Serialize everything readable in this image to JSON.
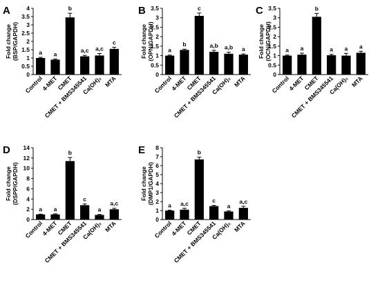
{
  "chart_data": [
    {
      "type": "bar",
      "panel": "A",
      "ylabel_line1": "Fold change",
      "ylabel_line2": "(BSP/GAPDH)",
      "categories": [
        "Control",
        "4-MET",
        "CMET",
        "CMET + BMS345541",
        "Ca(OH)₂",
        "MTA"
      ],
      "values": [
        1.0,
        0.9,
        3.45,
        1.1,
        1.15,
        1.55
      ],
      "errors": [
        0.04,
        0.04,
        0.25,
        0.06,
        0.12,
        0.1
      ],
      "significance": [
        "a",
        "a",
        "b",
        "a,c",
        "a,c",
        "c"
      ],
      "ylim": [
        0,
        4
      ],
      "yticks": [
        "0",
        "0.5",
        "1",
        "1.5",
        "2",
        "2.5",
        "3",
        "3.5",
        "4"
      ],
      "ytick_values": [
        0,
        0.5,
        1,
        1.5,
        2,
        2.5,
        3,
        3.5,
        4
      ]
    },
    {
      "type": "bar",
      "panel": "B",
      "ylabel_line1": "Fold change",
      "ylabel_line2": "(OPN/GAPDH)",
      "categories": [
        "Control",
        "4-MET",
        "CMET",
        "CMET + BMS345541",
        "Ca(OH)₂",
        "MTA"
      ],
      "values": [
        1.0,
        1.3,
        3.1,
        1.2,
        1.1,
        1.05
      ],
      "errors": [
        0.03,
        0.04,
        0.15,
        0.08,
        0.08,
        0.04
      ],
      "significance": [
        "a",
        "b",
        "c",
        "a,b",
        "a,b",
        "a"
      ],
      "ylim": [
        0,
        3.5
      ],
      "yticks": [
        "0",
        "0.5",
        "1",
        "1.5",
        "2",
        "2.5",
        "3",
        "3.5"
      ],
      "ytick_values": [
        0,
        0.5,
        1,
        1.5,
        2,
        2.5,
        3,
        3.5
      ]
    },
    {
      "type": "bar",
      "panel": "C",
      "ylabel_line1": "Fold change",
      "ylabel_line2": "(OCN/GAPDH)",
      "categories": [
        "Control",
        "4-MET",
        "CMET",
        "CMET + BMS345541",
        "Ca(OH)₂",
        "MTA"
      ],
      "values": [
        1.0,
        1.05,
        3.05,
        1.02,
        1.0,
        1.15
      ],
      "errors": [
        0.03,
        0.08,
        0.18,
        0.05,
        0.12,
        0.08
      ],
      "significance": [
        "a",
        "a",
        "b",
        "a",
        "a",
        "a"
      ],
      "ylim": [
        0,
        3.5
      ],
      "yticks": [
        "0",
        "0.5",
        "1",
        "1.5",
        "2",
        "2.5",
        "3",
        "3.5"
      ],
      "ytick_values": [
        0,
        0.5,
        1,
        1.5,
        2,
        2.5,
        3,
        3.5
      ]
    },
    {
      "type": "bar",
      "panel": "D",
      "ylabel_line1": "Fold change",
      "ylabel_line2": "(DSPP/GAPDH)",
      "categories": [
        "Control",
        "4-MET",
        "CMET",
        "CMET + BMS345541",
        "Ca(OH)₂",
        "MTA"
      ],
      "values": [
        1.0,
        1.0,
        11.4,
        2.8,
        0.9,
        2.0
      ],
      "errors": [
        0.05,
        0.1,
        0.7,
        0.25,
        0.1,
        0.2
      ],
      "significance": [
        "a",
        "a",
        "b",
        "c",
        "a",
        "a,c"
      ],
      "ylim": [
        0,
        14
      ],
      "yticks": [
        "0",
        "2",
        "4",
        "6",
        "8",
        "10",
        "12",
        "14"
      ],
      "ytick_values": [
        0,
        2,
        4,
        6,
        8,
        10,
        12,
        14
      ]
    },
    {
      "type": "bar",
      "panel": "E",
      "ylabel_line1": "Fold change",
      "ylabel_line2": "(DMP1/GAPDH)",
      "categories": [
        "Control",
        "4-MET",
        "CMET",
        "CMET + BMS345541",
        "Ca(OH)₂",
        "MTA"
      ],
      "values": [
        1.0,
        1.1,
        6.7,
        1.5,
        0.9,
        1.3
      ],
      "errors": [
        0.05,
        0.15,
        0.25,
        0.08,
        0.08,
        0.18
      ],
      "significance": [
        "a",
        "a,c",
        "b",
        "c",
        "a",
        "a,c"
      ],
      "ylim": [
        0,
        8
      ],
      "yticks": [
        "0",
        "1",
        "2",
        "3",
        "4",
        "5",
        "6",
        "7",
        "8"
      ],
      "ytick_values": [
        0,
        1,
        2,
        3,
        4,
        5,
        6,
        7,
        8
      ]
    }
  ],
  "colors": {
    "bar": "#000000",
    "axis": "#000000",
    "background": "#ffffff"
  }
}
